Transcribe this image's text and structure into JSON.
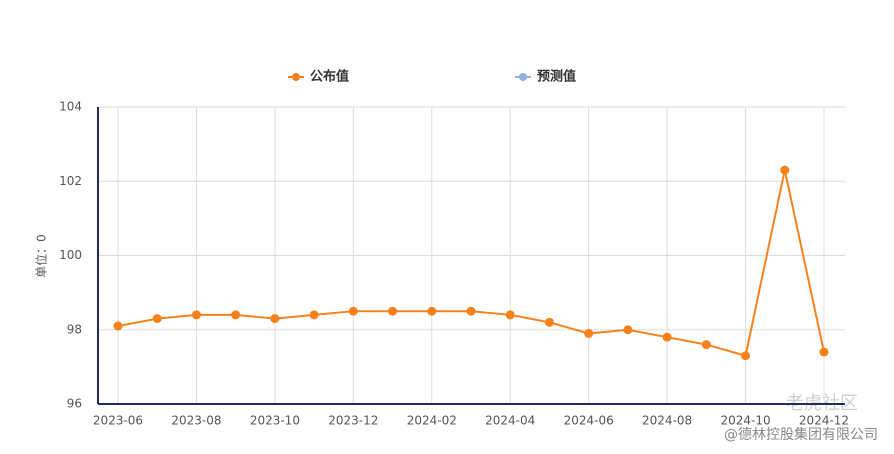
{
  "chart_data": {
    "type": "line",
    "y_label": "单位：0",
    "categories": [
      "2023-06",
      null,
      "2023-08",
      null,
      "2023-10",
      null,
      "2023-12",
      null,
      "2024-02",
      null,
      "2024-04",
      null,
      "2024-06",
      null,
      "2024-08",
      null,
      "2024-10",
      null,
      "2024-12"
    ],
    "series": [
      {
        "name": "公布值",
        "color": "#f7821b",
        "values": [
          98.1,
          98.3,
          98.4,
          98.4,
          98.3,
          98.4,
          98.5,
          98.5,
          98.5,
          98.5,
          98.4,
          98.2,
          97.9,
          98.0,
          97.8,
          97.6,
          97.3,
          102.3,
          97.4
        ]
      },
      {
        "name": "预测值",
        "color": "#8db4e2",
        "values": [
          null,
          null,
          null,
          null,
          null,
          null,
          null,
          null,
          null,
          null,
          null,
          null,
          null,
          null,
          null,
          null,
          null,
          null,
          null
        ]
      }
    ],
    "ylim": [
      96,
      104
    ],
    "yticks": [
      96,
      98,
      100,
      102,
      104
    ],
    "grid": true,
    "watermark": "老虎社区",
    "source": "@德林控股集团有限公司"
  }
}
